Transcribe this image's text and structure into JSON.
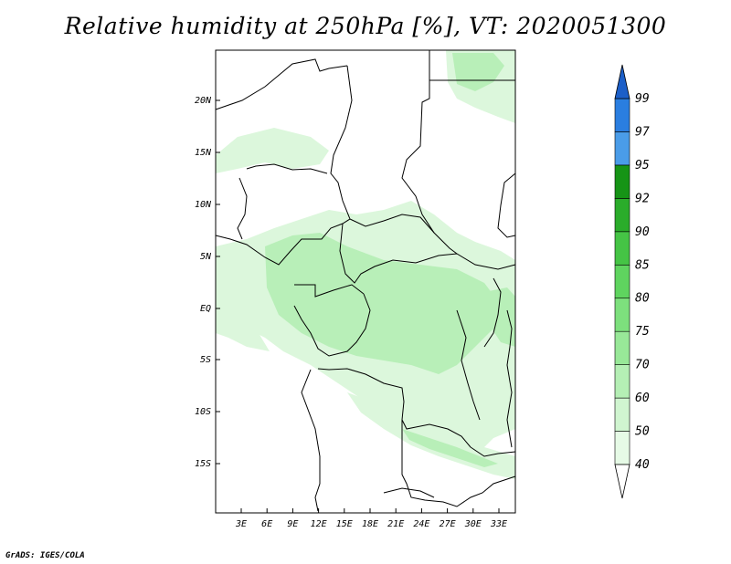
{
  "title": "Relative humidity at 250hPa [%], VT: 2020051300",
  "credit": "GrADS: IGES/COLA",
  "map": {
    "lat_labels": [
      "20N",
      "15N",
      "10N",
      "5N",
      "EQ",
      "5S",
      "10S",
      "15S"
    ],
    "lon_labels": [
      "3E",
      "6E",
      "9E",
      "12E",
      "15E",
      "18E",
      "21E",
      "24E",
      "27E",
      "30E",
      "33E"
    ]
  },
  "colorbar": {
    "levels": [
      "40",
      "50",
      "60",
      "70",
      "75",
      "80",
      "85",
      "90",
      "92",
      "95",
      "97",
      "99"
    ],
    "colors": [
      "#e6fae6",
      "#d0f5d0",
      "#b5efb5",
      "#98e898",
      "#7de07d",
      "#5fd45f",
      "#45c445",
      "#2aac2a",
      "#169416",
      "#4a9ce8",
      "#2a7ee0",
      "#1c5fc8"
    ],
    "low_end_color": "#ffffff",
    "high_end_color": "#1c5fc8"
  },
  "field_colors": {
    "light": "#dcf7dc",
    "medium": "#b8efb8",
    "strong": "#98e898"
  }
}
